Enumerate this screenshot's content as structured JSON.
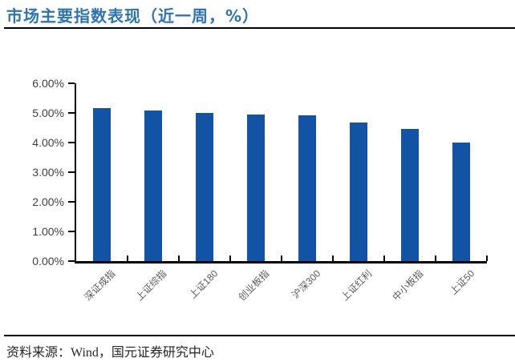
{
  "title": "市场主要指数表现（近一周，%）",
  "source_note": "资料来源：Wind，国元证券研究中心",
  "colors": {
    "bar": "#1353A5",
    "title": "#2E74B5",
    "axis": "#000000",
    "ytick_label": "#3F3F3F",
    "xtick_label": "#595959",
    "source_text": "#262626"
  },
  "chart_data": {
    "type": "bar",
    "title": "市场主要指数表现（近一周，%）",
    "categories": [
      "深证成指",
      "上证综指",
      "上证180",
      "创业板指",
      "沪深300",
      "上证红利",
      "中小板指",
      "上证50"
    ],
    "values": [
      5.16,
      5.07,
      4.99,
      4.95,
      4.91,
      4.67,
      4.47,
      4.01
    ],
    "unit": "%",
    "xlabel": "",
    "ylabel": "",
    "ylim": [
      0,
      6
    ],
    "ytick_step": 1,
    "ytick_labels": [
      "0.00%",
      "1.00%",
      "2.00%",
      "3.00%",
      "4.00%",
      "5.00%",
      "6.00%"
    ],
    "grid": false,
    "legend": "none",
    "bar_orientation": "vertical",
    "xtick_rotation_deg": 45
  }
}
